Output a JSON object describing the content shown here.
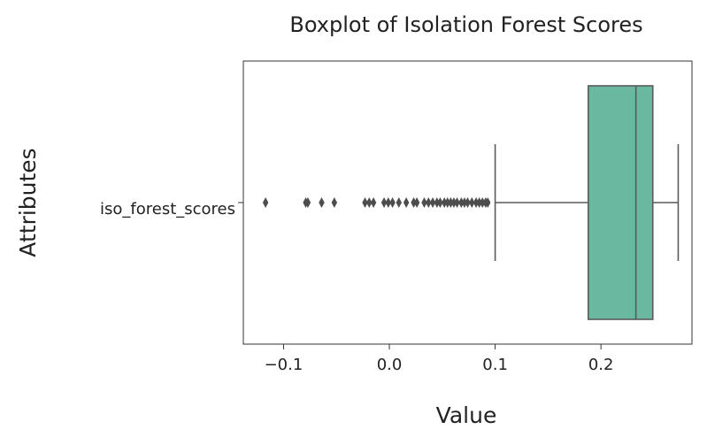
{
  "chart_data": {
    "type": "boxplot",
    "orientation": "horizontal",
    "title": "Boxplot of Isolation Forest Scores",
    "xlabel": "Value",
    "ylabel": "Attributes",
    "xlim": [
      -0.138,
      0.286
    ],
    "x_ticks": [
      -0.1,
      0.0,
      0.1,
      0.2
    ],
    "x_tick_labels": [
      "−0.1",
      "0.0",
      "0.1",
      "0.2"
    ],
    "grid": false,
    "categories": [
      "iso_forest_scores"
    ],
    "box": {
      "whisker_low": 0.1,
      "q1": 0.188,
      "median": 0.233,
      "q3": 0.249,
      "whisker_high": 0.273
    },
    "outliers": [
      -0.117,
      -0.079,
      -0.077,
      -0.064,
      -0.052,
      -0.023,
      -0.019,
      -0.015,
      -0.005,
      -0.001,
      0.003,
      0.009,
      0.016,
      0.023,
      0.026,
      0.033,
      0.037,
      0.041,
      0.045,
      0.048,
      0.052,
      0.055,
      0.058,
      0.061,
      0.064,
      0.068,
      0.071,
      0.074,
      0.078,
      0.082,
      0.085,
      0.088,
      0.091,
      0.093
    ],
    "colors": {
      "box_fill": "#6bb8a0",
      "line": "#5a5a5a",
      "outlier": "#4d4d4d"
    }
  }
}
